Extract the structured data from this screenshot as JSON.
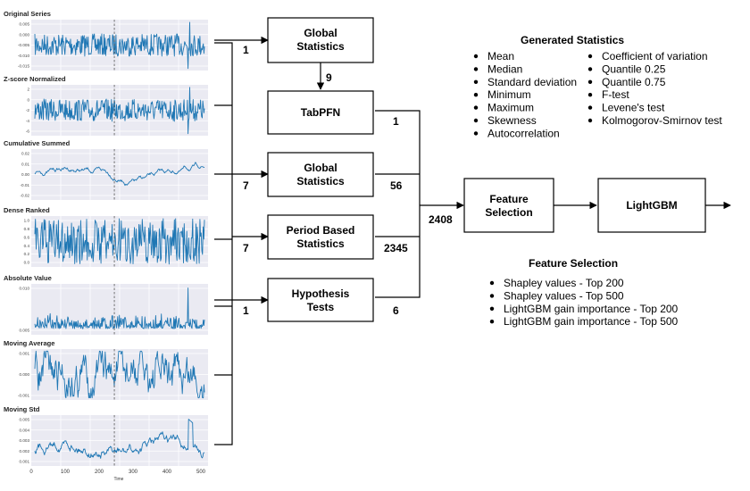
{
  "panels": [
    {
      "title": "Original Series",
      "yticks": [
        "0.005",
        "0.000",
        "-0.005",
        "-0.010",
        "-0.015"
      ],
      "style": "noise"
    },
    {
      "title": "Z-score Normalized",
      "yticks": [
        "2",
        "0",
        "-2",
        "-4",
        "-6"
      ],
      "style": "noise"
    },
    {
      "title": "Cumulative Summed",
      "yticks": [
        "0.02",
        "0.01",
        "0.00",
        "-0.01",
        "-0.02"
      ],
      "style": "walk"
    },
    {
      "title": "Dense Ranked",
      "yticks": [
        "1.0",
        "0.8",
        "0.6",
        "0.4",
        "0.2",
        "0.0"
      ],
      "style": "dense"
    },
    {
      "title": "Absolute Value",
      "yticks": [
        "0.010",
        "0.005"
      ],
      "style": "abs"
    },
    {
      "title": "Moving Average",
      "yticks": [
        "0.001",
        "0.000",
        "-0.001"
      ],
      "style": "smooth"
    },
    {
      "title": "Moving Std",
      "yticks": [
        "0.005",
        "0.004",
        "0.003",
        "0.002",
        "0.001"
      ],
      "style": "std"
    }
  ],
  "x_axis": {
    "ticks": [
      "0",
      "100",
      "200",
      "300",
      "400",
      "500"
    ],
    "label": "Time"
  },
  "boxes": {
    "global_stats_top": [
      "Global",
      "Statistics"
    ],
    "tabpfn": [
      "TabPFN"
    ],
    "global_stats_mid": [
      "Global",
      "Statistics"
    ],
    "period_stats": [
      "Period Based",
      "Statistics"
    ],
    "hypothesis": [
      "Hypothesis",
      "Tests"
    ],
    "feature_selection": [
      "Feature",
      "Selection"
    ],
    "lightgbm": [
      "LightGBM"
    ]
  },
  "counts": {
    "to_global_top": "1",
    "global_to_tabpfn": "9",
    "tabpfn_out": "1",
    "to_global_mid": "7",
    "global_mid_out": "56",
    "to_period": "7",
    "period_out": "2345",
    "to_hypothesis": "1",
    "hypothesis_out": "6",
    "total": "2408"
  },
  "generated_statistics": {
    "title": "Generated Statistics",
    "col1": [
      "Mean",
      "Median",
      "Standard deviation",
      "Minimum",
      "Maximum",
      "Skewness",
      "Autocorrelation"
    ],
    "col2": [
      "Coefficient of variation",
      "Quantile 0.25",
      "Quantile 0.75",
      "F-test",
      "Levene's test",
      "Kolmogorov-Smirnov test"
    ]
  },
  "feature_selection_list": {
    "title": "Feature Selection",
    "items": [
      "Shapley values - Top 200",
      "Shapley values - Top 500",
      "LightGBM gain importance - Top 200",
      "LightGBM gain importance - Top 500"
    ]
  }
}
